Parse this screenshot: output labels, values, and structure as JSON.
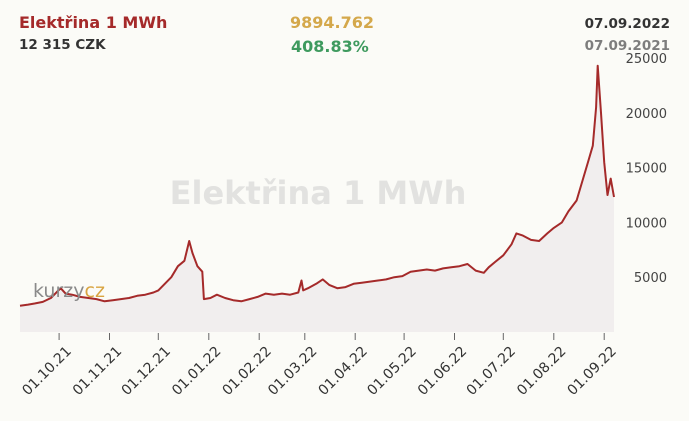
{
  "header": {
    "title": "Elektřina 1 MWh",
    "price": "12 315 CZK",
    "value": "9894.762",
    "change": "408.83%",
    "date_current": "07.09.2022",
    "date_previous": "07.09.2021"
  },
  "watermark": "Elektřina 1 MWh",
  "logo": {
    "main": "kurzy",
    "suffix": "cz"
  },
  "colors": {
    "line": "#a52a2a",
    "area": "#f1eeee",
    "title": "#a52a2a",
    "value": "#d4a84b",
    "change": "#3e9a5e"
  },
  "chart_data": {
    "type": "area",
    "title": "Elektřina 1 MWh",
    "xlabel": "",
    "ylabel": "",
    "y_axis_side": "right",
    "ylim": [
      0,
      25000
    ],
    "y_ticks": [
      5000,
      10000,
      15000,
      20000,
      25000
    ],
    "x_ticks": [
      "01.10.21",
      "01.11.21",
      "01.12.21",
      "01.01.22",
      "01.02.22",
      "01.03.22",
      "01.04.22",
      "01.05.22",
      "01.06.22",
      "01.07.22",
      "01.08.22",
      "01.09.22"
    ],
    "grid": false,
    "series": [
      {
        "values": [
          [
            "07.09.2021",
            2400
          ],
          [
            "12.09.2021",
            2500
          ],
          [
            "16.09.2021",
            2600
          ],
          [
            "21.09.2021",
            2750
          ],
          [
            "26.09.2021",
            3100
          ],
          [
            "30.09.2021",
            3700
          ],
          [
            "02.10.2021",
            4000
          ],
          [
            "05.10.2021",
            3500
          ],
          [
            "09.10.2021",
            3400
          ],
          [
            "14.10.2021",
            3200
          ],
          [
            "19.10.2021",
            3100
          ],
          [
            "24.10.2021",
            3000
          ],
          [
            "29.10.2021",
            2800
          ],
          [
            "03.11.2021",
            2900
          ],
          [
            "08.11.2021",
            3000
          ],
          [
            "13.11.2021",
            3100
          ],
          [
            "18.11.2021",
            3300
          ],
          [
            "23.11.2021",
            3400
          ],
          [
            "28.11.2021",
            3600
          ],
          [
            "01.12.2021",
            3800
          ],
          [
            "05.12.2021",
            4400
          ],
          [
            "09.12.2021",
            5000
          ],
          [
            "13.12.2021",
            6000
          ],
          [
            "17.12.2021",
            6500
          ],
          [
            "20.12.2021",
            8300
          ],
          [
            "22.12.2021",
            7200
          ],
          [
            "25.12.2021",
            6000
          ],
          [
            "28.12.2021",
            5500
          ],
          [
            "29.12.2021",
            3000
          ],
          [
            "02.01.2022",
            3100
          ],
          [
            "06.01.2022",
            3400
          ],
          [
            "11.01.2022",
            3100
          ],
          [
            "16.01.2022",
            2900
          ],
          [
            "21.01.2022",
            2800
          ],
          [
            "26.01.2022",
            3000
          ],
          [
            "31.01.2022",
            3200
          ],
          [
            "05.02.2022",
            3500
          ],
          [
            "10.02.2022",
            3400
          ],
          [
            "15.02.2022",
            3500
          ],
          [
            "20.02.2022",
            3400
          ],
          [
            "25.02.2022",
            3600
          ],
          [
            "27.02.2022",
            4700
          ],
          [
            "28.02.2022",
            3800
          ],
          [
            "03.03.2022",
            4000
          ],
          [
            "08.03.2022",
            4400
          ],
          [
            "12.03.2022",
            4800
          ],
          [
            "16.03.2022",
            4300
          ],
          [
            "21.03.2022",
            4000
          ],
          [
            "26.03.2022",
            4100
          ],
          [
            "31.03.2022",
            4400
          ],
          [
            "05.04.2022",
            4500
          ],
          [
            "10.04.2022",
            4600
          ],
          [
            "15.04.2022",
            4700
          ],
          [
            "20.04.2022",
            4800
          ],
          [
            "25.04.2022",
            5000
          ],
          [
            "30.04.2022",
            5100
          ],
          [
            "05.05.2022",
            5500
          ],
          [
            "10.05.2022",
            5600
          ],
          [
            "15.05.2022",
            5700
          ],
          [
            "20.05.2022",
            5600
          ],
          [
            "25.05.2022",
            5800
          ],
          [
            "30.05.2022",
            5900
          ],
          [
            "04.06.2022",
            6000
          ],
          [
            "09.06.2022",
            6200
          ],
          [
            "14.06.2022",
            5600
          ],
          [
            "19.06.2022",
            5400
          ],
          [
            "22.06.2022",
            5900
          ],
          [
            "26.06.2022",
            6400
          ],
          [
            "01.07.2022",
            7000
          ],
          [
            "06.07.2022",
            8000
          ],
          [
            "09.07.2022",
            9000
          ],
          [
            "13.07.2022",
            8800
          ],
          [
            "18.07.2022",
            8400
          ],
          [
            "23.07.2022",
            8300
          ],
          [
            "28.07.2022",
            9000
          ],
          [
            "01.08.2022",
            9500
          ],
          [
            "06.08.2022",
            10000
          ],
          [
            "10.08.2022",
            11000
          ],
          [
            "15.08.2022",
            12000
          ],
          [
            "19.08.2022",
            14000
          ],
          [
            "22.08.2022",
            15500
          ],
          [
            "25.08.2022",
            17000
          ],
          [
            "27.08.2022",
            20500
          ],
          [
            "28.08.2022",
            24300
          ],
          [
            "30.08.2022",
            20000
          ],
          [
            "01.09.2022",
            15500
          ],
          [
            "03.09.2022",
            12500
          ],
          [
            "05.09.2022",
            14000
          ],
          [
            "07.09.2022",
            12315
          ]
        ]
      }
    ]
  }
}
